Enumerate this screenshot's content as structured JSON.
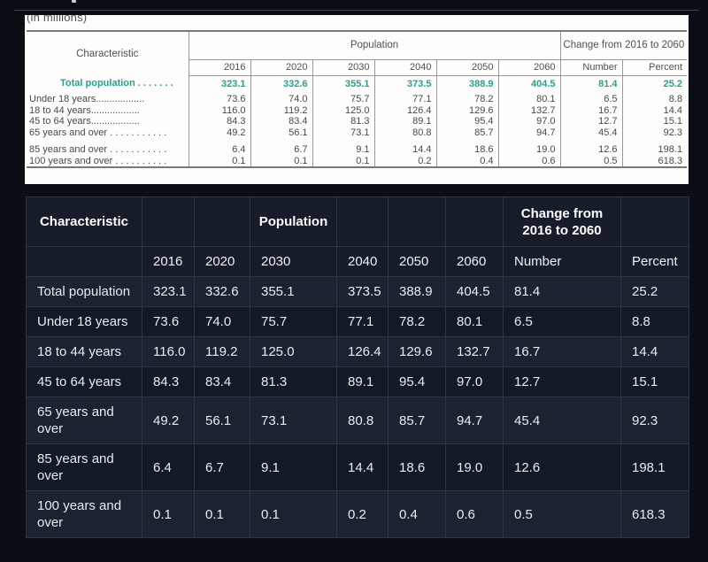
{
  "source_image": {
    "units_note": "(in millions)",
    "header": {
      "characteristic": "Characteristic",
      "population": "Population",
      "change": "Change from 2016 to 2060",
      "columns": [
        "2016",
        "2020",
        "2030",
        "2040",
        "2050",
        "2060",
        "Number",
        "Percent"
      ]
    },
    "rows": [
      {
        "label": "Total population . . . . . . .",
        "style": "total",
        "values": [
          "323.1",
          "332.6",
          "355.1",
          "373.5",
          "388.9",
          "404.5",
          "81.4",
          "25.2"
        ]
      },
      {
        "label": "Under 18 years..................",
        "style": "",
        "values": [
          "73.6",
          "74.0",
          "75.7",
          "77.1",
          "78.2",
          "80.1",
          "6.5",
          "8.8"
        ]
      },
      {
        "label": "18 to 44 years..................",
        "style": "",
        "values": [
          "116.0",
          "119.2",
          "125.0",
          "126.4",
          "129.6",
          "132.7",
          "16.7",
          "14.4"
        ]
      },
      {
        "label": "45 to 64 years..................",
        "style": "",
        "values": [
          "84.3",
          "83.4",
          "81.3",
          "89.1",
          "95.4",
          "97.0",
          "12.7",
          "15.1"
        ]
      },
      {
        "label": "65 years and over . . . . . . . . . . .",
        "style": "",
        "values": [
          "49.2",
          "56.1",
          "73.1",
          "80.8",
          "85.7",
          "94.7",
          "45.4",
          "92.3"
        ]
      },
      {
        "label": "",
        "style": "spacer",
        "values": [
          "",
          "",
          "",
          "",
          "",
          "",
          "",
          ""
        ]
      },
      {
        "label": "85 years and over . . . . . . . . . . .",
        "style": "",
        "values": [
          "6.4",
          "6.7",
          "9.1",
          "14.4",
          "18.6",
          "19.0",
          "12.6",
          "198.1"
        ]
      },
      {
        "label": "100 years and over . . . . . . . . . .",
        "style": "",
        "values": [
          "0.1",
          "0.1",
          "0.1",
          "0.2",
          "0.4",
          "0.6",
          "0.5",
          "618.3"
        ]
      }
    ]
  },
  "dark_table": {
    "header_row1": [
      "Characteristic",
      "",
      "",
      "Population",
      "",
      "",
      "",
      "Change from 2016 to 2060",
      ""
    ],
    "header_row2": [
      "",
      "2016",
      "2020",
      "2030",
      "2040",
      "2050",
      "2060",
      "Number",
      "Percent"
    ],
    "rows": [
      {
        "label": "Total population",
        "values": [
          "323.1",
          "332.6",
          "355.1",
          "373.5",
          "388.9",
          "404.5",
          "81.4",
          "25.2"
        ]
      },
      {
        "label": "Under 18 years",
        "values": [
          "73.6",
          "74.0",
          "75.7",
          "77.1",
          "78.2",
          "80.1",
          "6.5",
          "8.8"
        ]
      },
      {
        "label": "18 to 44 years",
        "values": [
          "116.0",
          "119.2",
          "125.0",
          "126.4",
          "129.6",
          "132.7",
          "16.7",
          "14.4"
        ]
      },
      {
        "label": "45 to 64 years",
        "values": [
          "84.3",
          "83.4",
          "81.3",
          "89.1",
          "95.4",
          "97.0",
          "12.7",
          "15.1"
        ]
      },
      {
        "label": "65 years and over",
        "values": [
          "49.2",
          "56.1",
          "73.1",
          "80.8",
          "85.7",
          "94.7",
          "45.4",
          "92.3"
        ]
      },
      {
        "label": "85 years and over",
        "values": [
          "6.4",
          "6.7",
          "9.1",
          "14.4",
          "18.6",
          "19.0",
          "12.6",
          "198.1"
        ]
      },
      {
        "label": "100 years and over",
        "values": [
          "0.1",
          "0.1",
          "0.1",
          "0.2",
          "0.4",
          "0.6",
          "0.5",
          "618.3"
        ]
      }
    ]
  },
  "colors": {
    "page_bg": "#0a0e15",
    "accent_teal": "#26a48b",
    "dark_row_light": "#1c2330",
    "dark_row_dark": "#131a25",
    "dark_border": "#2d3442"
  }
}
